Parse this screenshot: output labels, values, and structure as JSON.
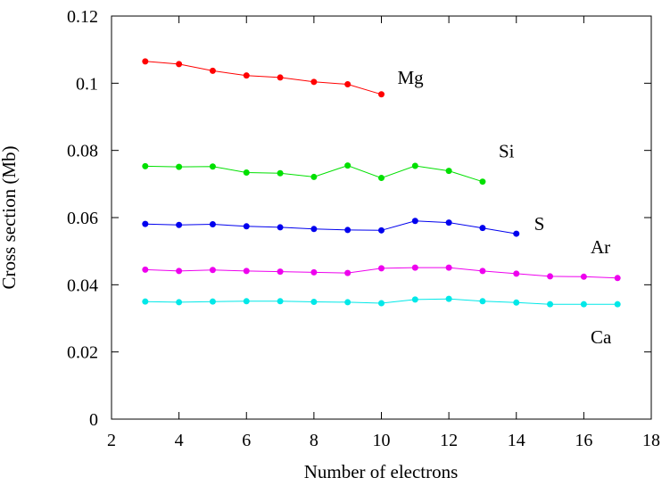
{
  "chart_data": {
    "type": "line",
    "title": "",
    "xlabel": "Number of electrons",
    "ylabel": "Cross section (Mb)",
    "xlim": [
      2,
      18
    ],
    "ylim": [
      0,
      0.12
    ],
    "xticks": [
      "2",
      "4",
      "6",
      "8",
      "10",
      "12",
      "14",
      "16",
      "18"
    ],
    "yticks": [
      "0",
      "0.02",
      "0.04",
      "0.06",
      "0.08",
      "0.1",
      "0.12"
    ],
    "grid": false,
    "legend": "none",
    "series": [
      {
        "name": "Mg",
        "color": "#ff0000",
        "x": [
          3,
          4,
          5,
          6,
          7,
          8,
          9,
          10
        ],
        "y": [
          0.1065,
          0.1057,
          0.1037,
          0.1023,
          0.1017,
          0.1004,
          0.0997,
          0.0967
        ]
      },
      {
        "name": "Si",
        "color": "#00e000",
        "x": [
          3,
          4,
          5,
          6,
          7,
          8,
          9,
          10,
          11,
          12,
          13
        ],
        "y": [
          0.0753,
          0.0751,
          0.0752,
          0.0734,
          0.0732,
          0.0721,
          0.0755,
          0.0718,
          0.0754,
          0.0739,
          0.0707
        ]
      },
      {
        "name": "S",
        "color": "#0000ee",
        "x": [
          3,
          4,
          5,
          6,
          7,
          8,
          9,
          10,
          11,
          12,
          13,
          14
        ],
        "y": [
          0.0581,
          0.0578,
          0.058,
          0.0574,
          0.0571,
          0.0566,
          0.0563,
          0.0562,
          0.059,
          0.0585,
          0.0569,
          0.0552
        ]
      },
      {
        "name": "Ar",
        "color": "#ee00ee",
        "x": [
          3,
          4,
          5,
          6,
          7,
          8,
          9,
          10,
          11,
          12,
          13,
          14,
          15,
          16,
          17
        ],
        "y": [
          0.0445,
          0.0441,
          0.0444,
          0.0441,
          0.0439,
          0.0437,
          0.0435,
          0.0449,
          0.0451,
          0.0451,
          0.0441,
          0.0433,
          0.0425,
          0.0424,
          0.042
        ]
      },
      {
        "name": "Ca",
        "color": "#00e8e8",
        "x": [
          3,
          4,
          5,
          6,
          7,
          8,
          9,
          10,
          11,
          12,
          13,
          14,
          15,
          16,
          17
        ],
        "y": [
          0.035,
          0.0348,
          0.035,
          0.0351,
          0.0351,
          0.0349,
          0.0348,
          0.0345,
          0.0356,
          0.0358,
          0.0351,
          0.0347,
          0.0342,
          0.0342,
          0.0342
        ]
      }
    ]
  }
}
